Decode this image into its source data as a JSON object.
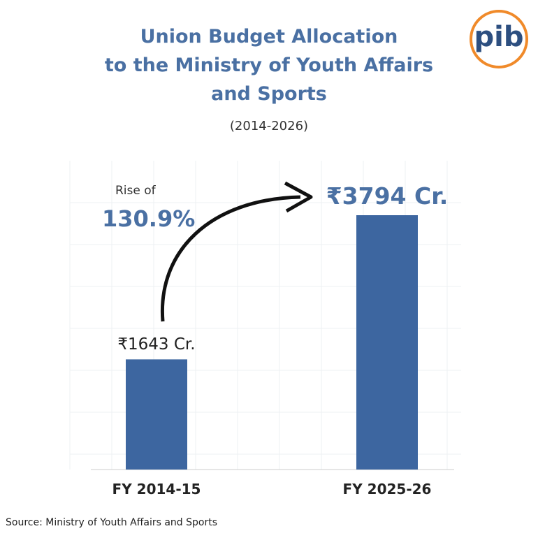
{
  "chart_data": {
    "type": "bar",
    "title": "Union Budget Allocation\nto  the Ministry of Youth Affairs\nand Sports",
    "subtitle": "(2014-2026)",
    "categories": [
      "FY 2014-15",
      "FY 2025-26"
    ],
    "values": [
      1643,
      3794
    ],
    "value_labels": [
      "₹1643 Cr.",
      "₹3794 Cr."
    ],
    "color": "#3d66a0",
    "annotations": [
      "Rise of",
      "130.9%"
    ],
    "source": "Source: Ministry of Youth Affairs and Sports"
  },
  "logo": "pib"
}
